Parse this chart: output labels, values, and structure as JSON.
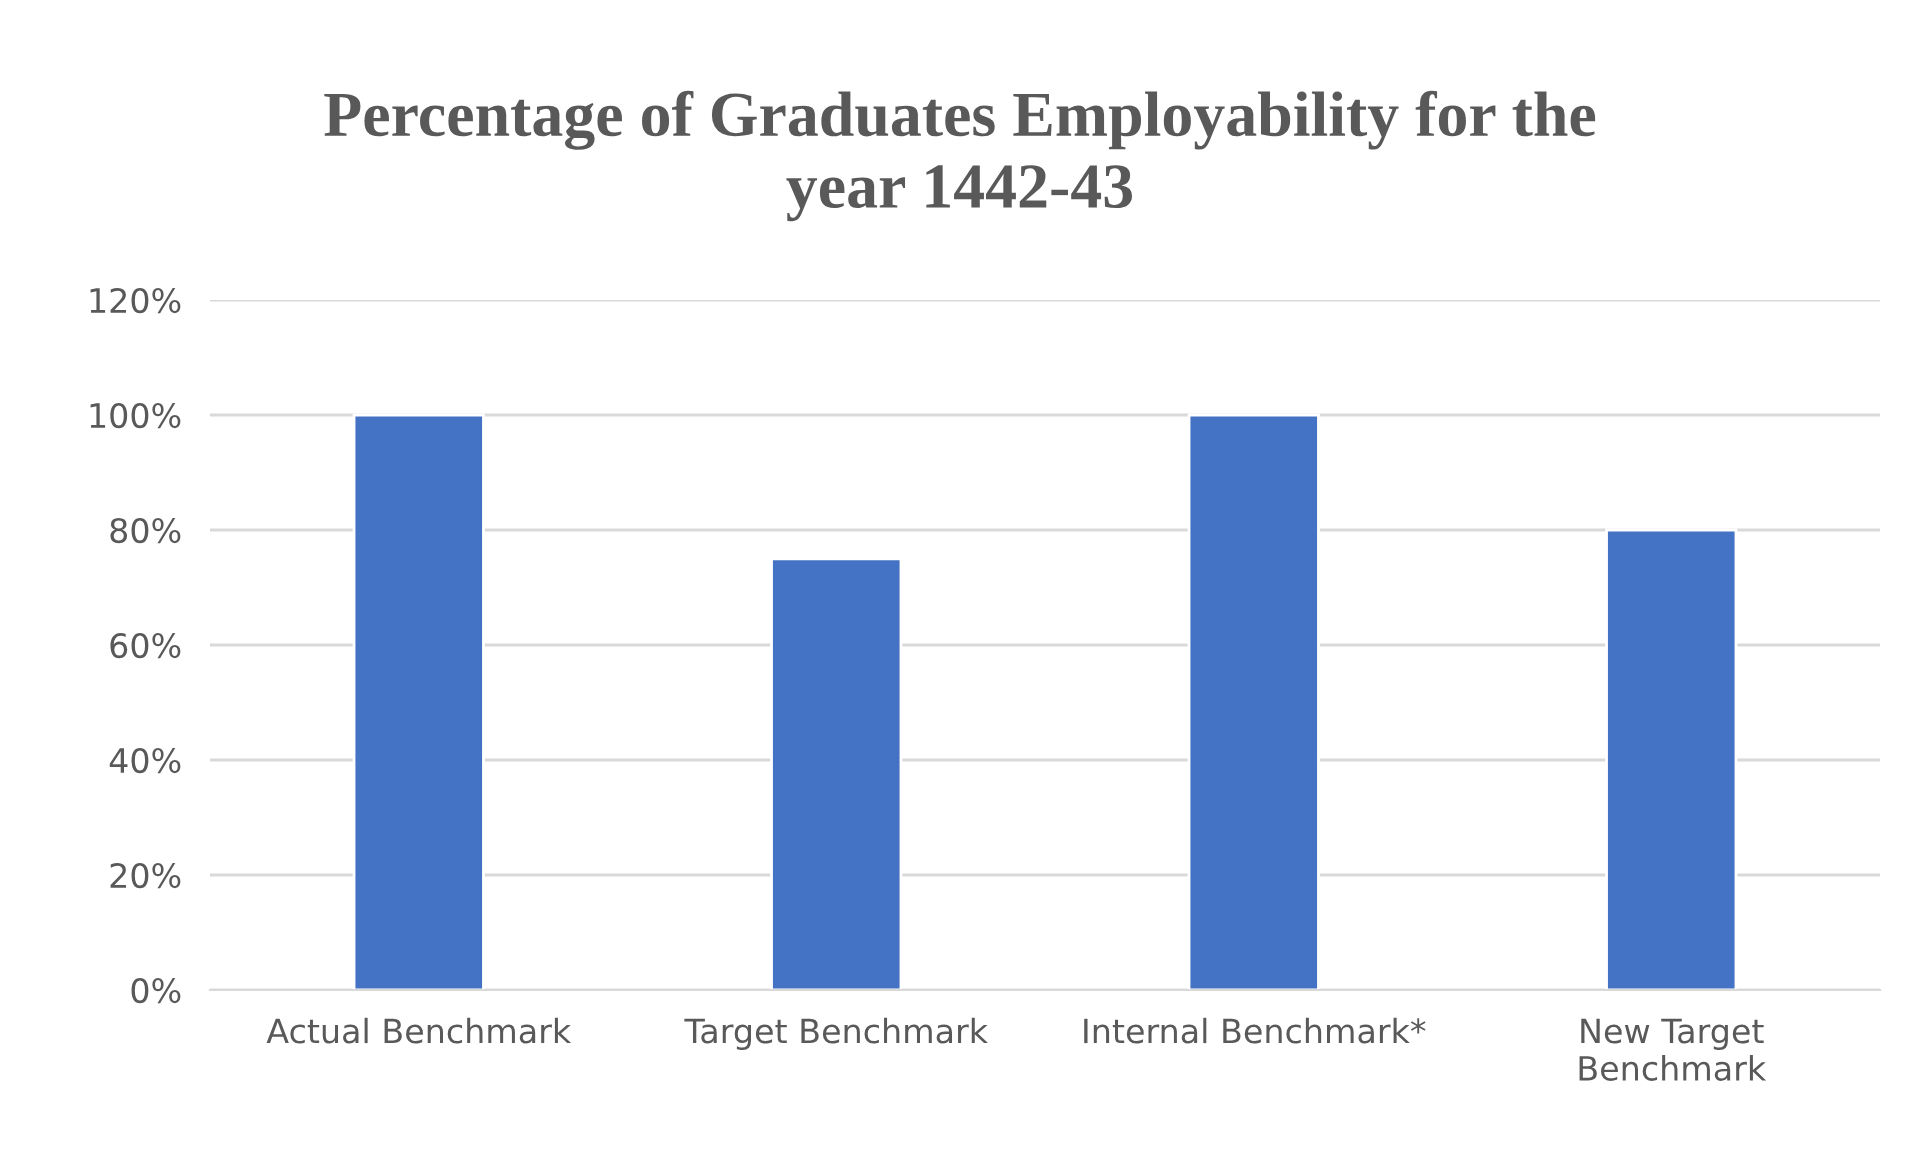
{
  "chart_data": {
    "type": "bar",
    "title": "Percentage of Graduates Employability for the\nyear 1442-43",
    "categories": [
      "Actual Benchmark",
      "Target Benchmark",
      "Internal Benchmark*",
      "New Target\nBenchmark"
    ],
    "values": [
      100,
      75,
      100,
      80
    ],
    "color": "#4472c4",
    "ylim": [
      0,
      120
    ],
    "yticks": [
      {
        "value": 0,
        "label": "0%"
      },
      {
        "value": 20,
        "label": "20%"
      },
      {
        "value": 40,
        "label": "40%"
      },
      {
        "value": 60,
        "label": "60%"
      },
      {
        "value": 80,
        "label": "80%"
      },
      {
        "value": 100,
        "label": "100%"
      },
      {
        "value": 120,
        "label": "120%"
      }
    ],
    "grid": "y",
    "legend": false
  }
}
